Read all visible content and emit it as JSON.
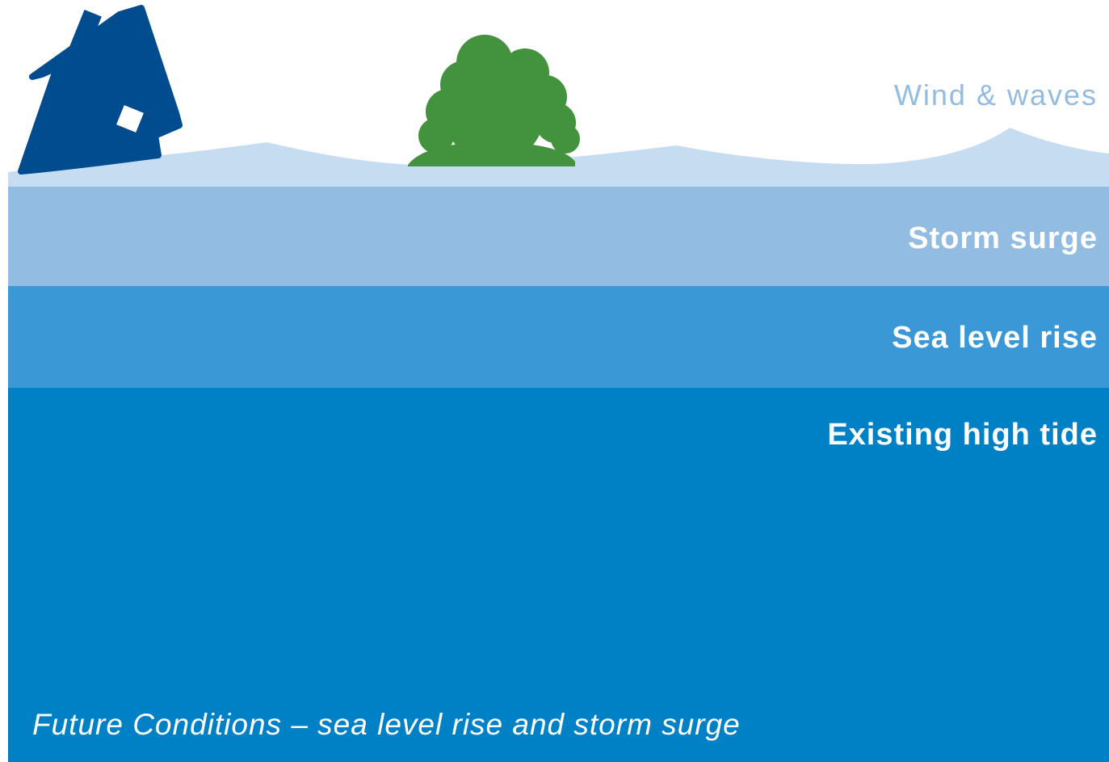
{
  "labels": {
    "wind_waves": "Wind & waves",
    "storm_surge": "Storm surge",
    "sea_level_rise": "Sea level rise",
    "existing_high_tide": "Existing high tide"
  },
  "caption": "Future Conditions – sea level rise and storm surge",
  "icons": [
    "house-icon",
    "tree-icon",
    "waves-shape"
  ],
  "colors": {
    "wind_waves": "#c5dcf1",
    "storm_surge": "#93bce3",
    "sea_level_rise": "#3a98d6",
    "existing_high_tide": "#0081c6",
    "house": "#004c8e",
    "tree": "#43933e"
  }
}
